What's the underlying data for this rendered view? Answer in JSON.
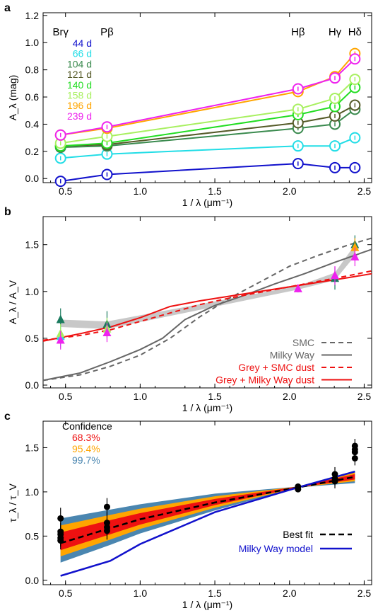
{
  "chart_data": [
    {
      "type": "line",
      "panel_label": "a",
      "xlabel": "1 / λ (μm⁻¹)",
      "ylabel": "A_λ (mag)",
      "xlim": [
        0.35,
        2.55
      ],
      "ylim": [
        -0.03,
        1.22
      ],
      "xticks": [
        "0.5",
        "1.0",
        "1.5",
        "2.0",
        "2.5"
      ],
      "yticks": [
        "0.0",
        "0.2",
        "0.4",
        "0.6",
        "0.8",
        "1.0",
        "1.2"
      ],
      "line_labels": [
        {
          "text": "Brγ",
          "x": 0.467
        },
        {
          "text": "Pβ",
          "x": 0.778
        },
        {
          "text": "Hβ",
          "x": 2.057
        },
        {
          "text": "Hγ",
          "x": 2.304
        },
        {
          "text": "Hδ",
          "x": 2.438
        }
      ],
      "x": [
        0.467,
        0.778,
        2.057,
        2.304,
        2.438
      ],
      "series": [
        {
          "name": "44 d",
          "color": "#1111cc",
          "values": [
            -0.02,
            0.03,
            0.11,
            0.08,
            0.08
          ]
        },
        {
          "name": "66 d",
          "color": "#22dde6",
          "values": [
            0.15,
            0.18,
            0.24,
            0.24,
            0.3
          ]
        },
        {
          "name": "104 d",
          "color": "#3a8a4e",
          "values": [
            0.23,
            0.24,
            0.37,
            0.4,
            0.51
          ]
        },
        {
          "name": "121 d",
          "color": "#555a28",
          "values": [
            0.24,
            0.25,
            0.41,
            0.46,
            0.54
          ]
        },
        {
          "name": "140 d",
          "color": "#22dd22",
          "values": [
            0.24,
            0.26,
            0.47,
            0.53,
            0.67
          ]
        },
        {
          "name": "158 d",
          "color": "#a8f060",
          "values": [
            0.26,
            0.31,
            0.51,
            0.59,
            0.73
          ]
        },
        {
          "name": "196 d",
          "color": "#ffa500",
          "values": [
            0.32,
            0.37,
            0.64,
            0.75,
            0.92
          ]
        },
        {
          "name": "239 d",
          "color": "#ee22ee",
          "values": [
            0.32,
            0.38,
            0.66,
            0.74,
            0.88
          ]
        }
      ]
    },
    {
      "type": "line",
      "panel_label": "b",
      "xlabel": "1 / λ (μm⁻¹)",
      "ylabel": "A_λ / A_V",
      "xlim": [
        0.35,
        2.55
      ],
      "ylim": [
        -0.03,
        1.8
      ],
      "xticks": [
        "0.5",
        "1.0",
        "1.5",
        "2.0",
        "2.5"
      ],
      "yticks": [
        "0.0",
        "0.5",
        "1.0",
        "1.5"
      ],
      "legend": [
        {
          "name": "SMC",
          "color": "#666666",
          "dash": true
        },
        {
          "name": "Milky Way",
          "color": "#666666",
          "dash": false
        },
        {
          "name": "Grey + SMC dust",
          "color": "#ee1111",
          "dash": true
        },
        {
          "name": "Grey + Milky Way dust",
          "color": "#ee1111",
          "dash": false
        }
      ],
      "shaded_band": {
        "x": [
          0.467,
          0.778,
          2.057,
          2.304,
          2.438
        ],
        "lower": [
          0.62,
          0.6,
          1.02,
          1.12,
          1.38
        ],
        "upper": [
          0.7,
          0.68,
          1.06,
          1.2,
          1.5
        ]
      },
      "curves": [
        {
          "name": "SMC",
          "color": "#666666",
          "dash": true,
          "x": [
            0.35,
            0.6,
            0.8,
            1.0,
            1.2,
            1.4,
            1.6,
            1.8,
            2.0,
            2.2,
            2.4,
            2.55
          ],
          "y": [
            0.05,
            0.11,
            0.2,
            0.32,
            0.5,
            0.73,
            0.93,
            1.1,
            1.27,
            1.39,
            1.5,
            1.57
          ]
        },
        {
          "name": "Milky Way",
          "color": "#666666",
          "dash": false,
          "x": [
            0.35,
            0.6,
            0.8,
            1.0,
            1.15,
            1.3,
            1.5,
            1.7,
            1.9,
            2.1,
            2.3,
            2.55
          ],
          "y": [
            0.05,
            0.13,
            0.25,
            0.38,
            0.5,
            0.7,
            0.85,
            0.96,
            1.08,
            1.19,
            1.31,
            1.45
          ]
        },
        {
          "name": "Grey + SMC dust",
          "color": "#ee1111",
          "dash": true,
          "x": [
            0.35,
            0.6,
            0.8,
            1.0,
            1.2,
            1.4,
            1.6,
            1.8,
            2.0,
            2.2,
            2.4,
            2.55
          ],
          "y": [
            0.48,
            0.53,
            0.59,
            0.68,
            0.77,
            0.86,
            0.93,
            0.99,
            1.05,
            1.11,
            1.17,
            1.22
          ]
        },
        {
          "name": "Grey + Milky Way dust",
          "color": "#ee1111",
          "dash": false,
          "x": [
            0.35,
            0.6,
            0.8,
            1.0,
            1.2,
            1.4,
            1.6,
            1.8,
            2.0,
            2.2,
            2.4,
            2.55
          ],
          "y": [
            0.47,
            0.55,
            0.62,
            0.72,
            0.84,
            0.9,
            0.95,
            1.0,
            1.05,
            1.1,
            1.15,
            1.19
          ]
        }
      ],
      "points": [
        {
          "shape": "triangle",
          "color": "#1a7a5e",
          "x": 0.467,
          "y": 0.7,
          "err": 0.12
        },
        {
          "shape": "triangle",
          "color": "#22dde6",
          "x": 0.467,
          "y": 0.52,
          "err": 0.12
        },
        {
          "shape": "triangle",
          "color": "#a8f060",
          "x": 0.467,
          "y": 0.55,
          "err": 0.1
        },
        {
          "shape": "triangle",
          "color": "#ee22ee",
          "x": 0.467,
          "y": 0.48,
          "err": 0.1
        },
        {
          "shape": "triangle",
          "color": "#1a7a5e",
          "x": 0.778,
          "y": 0.65,
          "err": 0.14
        },
        {
          "shape": "triangle",
          "color": "#a8f060",
          "x": 0.778,
          "y": 0.6,
          "err": 0.12
        },
        {
          "shape": "triangle",
          "color": "#ee22ee",
          "x": 0.778,
          "y": 0.56,
          "err": 0.1
        },
        {
          "shape": "triangle",
          "color": "#ee22ee",
          "x": 2.057,
          "y": 1.03,
          "err": 0.04
        },
        {
          "shape": "triangle",
          "color": "#1a7a5e",
          "x": 2.304,
          "y": 1.14,
          "err": 0.12
        },
        {
          "shape": "triangle",
          "color": "#ee22ee",
          "x": 2.304,
          "y": 1.17,
          "err": 0.1
        },
        {
          "shape": "triangle",
          "color": "#1a7a5e",
          "x": 2.438,
          "y": 1.5,
          "err": 0.1
        },
        {
          "shape": "triangle",
          "color": "#ffa500",
          "x": 2.438,
          "y": 1.47,
          "err": 0.1
        },
        {
          "shape": "triangle",
          "color": "#ee22ee",
          "x": 2.438,
          "y": 1.37,
          "err": 0.1
        }
      ]
    },
    {
      "type": "line",
      "panel_label": "c",
      "xlabel": "1 / λ (μm⁻¹)",
      "ylabel": "τ_λ / τ_V",
      "xlim": [
        0.35,
        2.55
      ],
      "ylim": [
        -0.05,
        1.8
      ],
      "xticks": [
        "0.5",
        "1.0",
        "1.5",
        "2.0",
        "2.5"
      ],
      "yticks": [
        "0.0",
        "0.5",
        "1.0",
        "1.5"
      ],
      "confidence_title": "Confidence",
      "confidence_bands": [
        {
          "label": "99.7%",
          "color": "#4a86b0",
          "x": [
            0.467,
            0.8,
            1.0,
            1.5,
            2.057,
            2.438
          ],
          "lower": [
            0.2,
            0.4,
            0.53,
            0.79,
            1.05,
            1.1
          ],
          "upper": [
            0.7,
            0.8,
            0.86,
            0.98,
            1.06,
            1.24
          ]
        },
        {
          "label": "95.4%",
          "color": "#ffa500",
          "x": [
            0.467,
            0.8,
            1.0,
            1.5,
            2.057,
            2.438
          ],
          "lower": [
            0.27,
            0.46,
            0.58,
            0.82,
            1.05,
            1.12
          ],
          "upper": [
            0.62,
            0.74,
            0.81,
            0.95,
            1.06,
            1.22
          ]
        },
        {
          "label": "68.3%",
          "color": "#ee1111",
          "x": [
            0.467,
            0.8,
            1.0,
            1.5,
            2.057,
            2.438
          ],
          "lower": [
            0.34,
            0.52,
            0.63,
            0.85,
            1.05,
            1.14
          ],
          "upper": [
            0.54,
            0.68,
            0.76,
            0.92,
            1.06,
            1.2
          ]
        }
      ],
      "lines": [
        {
          "name": "Best fit",
          "color": "#000000",
          "dash": true,
          "x": [
            0.467,
            0.8,
            1.0,
            1.5,
            2.057,
            2.438
          ],
          "y": [
            0.42,
            0.59,
            0.69,
            0.88,
            1.05,
            1.17
          ]
        },
        {
          "name": "Milky Way model",
          "color": "#1111cc",
          "dash": false,
          "x": [
            0.467,
            0.8,
            1.0,
            1.5,
            2.057,
            2.438
          ],
          "y": [
            0.05,
            0.22,
            0.41,
            0.77,
            1.05,
            1.23
          ]
        }
      ],
      "points": [
        {
          "x": 0.467,
          "y": 0.7,
          "err": 0.12
        },
        {
          "x": 0.467,
          "y": 0.55,
          "err": 0.1
        },
        {
          "x": 0.467,
          "y": 0.52,
          "err": 0.1
        },
        {
          "x": 0.467,
          "y": 0.48,
          "err": 0.1
        },
        {
          "x": 0.467,
          "y": 0.45,
          "err": 0.1
        },
        {
          "x": 0.778,
          "y": 0.83,
          "err": 0.1
        },
        {
          "x": 0.778,
          "y": 0.65,
          "err": 0.12
        },
        {
          "x": 0.778,
          "y": 0.6,
          "err": 0.1
        },
        {
          "x": 0.778,
          "y": 0.56,
          "err": 0.1
        },
        {
          "x": 2.057,
          "y": 1.06,
          "err": 0.03
        },
        {
          "x": 2.057,
          "y": 1.03,
          "err": 0.03
        },
        {
          "x": 2.304,
          "y": 1.2,
          "err": 0.08
        },
        {
          "x": 2.304,
          "y": 1.15,
          "err": 0.08
        },
        {
          "x": 2.304,
          "y": 1.12,
          "err": 0.08
        },
        {
          "x": 2.438,
          "y": 1.52,
          "err": 0.08
        },
        {
          "x": 2.438,
          "y": 1.48,
          "err": 0.08
        },
        {
          "x": 2.438,
          "y": 1.45,
          "err": 0.08
        },
        {
          "x": 2.438,
          "y": 1.38,
          "err": 0.08
        }
      ]
    }
  ]
}
